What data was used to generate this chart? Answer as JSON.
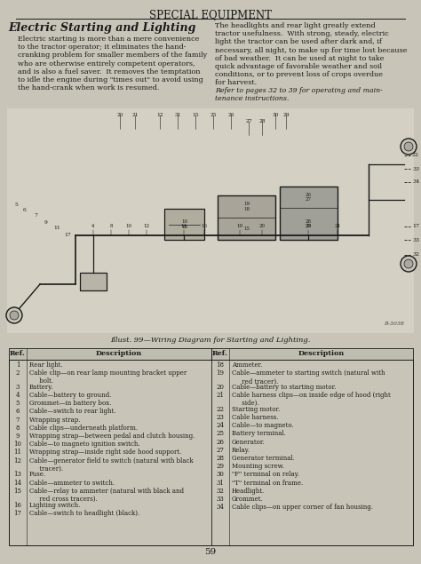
{
  "page_title": "SPECIAL EQUIPMENT",
  "section_title": "Electric Starting and Lighting",
  "left_para": "Electric starting is more than a mere convenience\nto the tractor operator; it eliminates the hand-\ncranking problem for smaller members of the family\nwho are otherwise entirely competent operators,\nand is also a fuel saver.  It removes the temptation\nto idle the engine during \"times out\" to avoid using\nthe hand-crank when work is resumed.",
  "right_para": "The headlights and rear light greatly extend\ntractor usefulness.  With strong, steady, electric\nlight the tractor can be used after dark and, if\nnecessary, all night, to make up for time lost because\nof bad weather.  It can be used at night to take\nquick advantage of favorable weather and soil\nconditions, or to prevent loss of crops overdue\nfor harvest.",
  "right_italic": "Refer to pages 32 to 39 for operating and main-\ntenance instructions.",
  "diagram_caption": "Illust. 99—Wiring Diagram for Starting and Lighting.",
  "left_refs": [
    [
      "1",
      "Rear light."
    ],
    [
      "2",
      "Cable clip—on rear lamp mounting bracket upper\n     bolt."
    ],
    [
      "3",
      "Battery."
    ],
    [
      "4",
      "Cable—battery to ground."
    ],
    [
      "5",
      "Grommet—in battery box."
    ],
    [
      "6",
      "Cable—switch to rear light."
    ],
    [
      "7",
      "Wrapping strap."
    ],
    [
      "8",
      "Cable clips—underneath platform."
    ],
    [
      "9",
      "Wrapping strap—between pedal and clutch housing."
    ],
    [
      "10",
      "Cable—to magneto ignition switch."
    ],
    [
      "11",
      "Wrapping strap—inside right side hood support."
    ],
    [
      "12",
      "Cable—generator field to switch (natural with black\n     tracer)."
    ],
    [
      "13",
      "Fuse."
    ],
    [
      "14",
      "Cable—ammeter to switch."
    ],
    [
      "15",
      "Cable—relay to ammeter (natural with black and\n     red cross tracers)."
    ],
    [
      "16",
      "Lighting switch."
    ],
    [
      "17",
      "Cable—switch to headlight (black)."
    ]
  ],
  "right_refs": [
    [
      "18",
      "Ammeter."
    ],
    [
      "19",
      "Cable—ammeter to starting switch (natural with\n     red tracer)."
    ],
    [
      "20",
      "Cable—battery to starting motor."
    ],
    [
      "21",
      "Cable harness clips—on inside edge of hood (right\n     side)."
    ],
    [
      "22",
      "Starting motor."
    ],
    [
      "23",
      "Cable harness."
    ],
    [
      "24",
      "Cable—to magneto."
    ],
    [
      "25",
      "Battery terminal."
    ],
    [
      "26",
      "Generator."
    ],
    [
      "27",
      "Relay."
    ],
    [
      "28",
      "Generator terminal."
    ],
    [
      "29",
      "Mounting screw."
    ],
    [
      "30",
      "\"F\" terminal on relay."
    ],
    [
      "31",
      "\"T\" terminal on frame."
    ],
    [
      "32",
      "Headlight."
    ],
    [
      "33",
      "Grommet."
    ],
    [
      "34",
      "Cable clips—on upper corner of fan housing."
    ]
  ],
  "page_number": "59",
  "bg_color": "#c8c4b8",
  "text_color": "#1a1a1a"
}
